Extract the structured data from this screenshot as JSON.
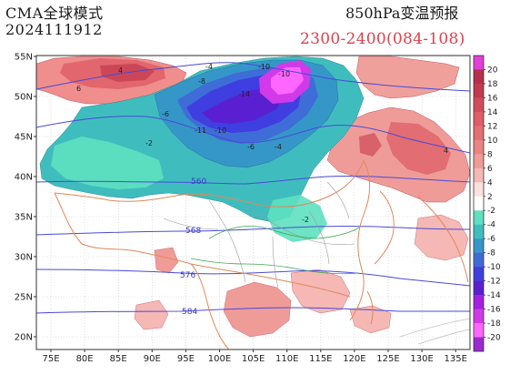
{
  "header": {
    "model": "CMA全球模式",
    "init_time": "2024111912",
    "product": "850hPa变温预报",
    "period": "2300-2400",
    "hours": "084-108",
    "open_paren": "(",
    "close_paren": ")"
  },
  "map": {
    "lat_ticks": [
      "55N",
      "50N",
      "45N",
      "40N",
      "35N",
      "30N",
      "25N",
      "20N"
    ],
    "lon_ticks": [
      "75E",
      "80E",
      "85E",
      "90E",
      "95E",
      "100E",
      "105E",
      "110E",
      "115E",
      "120E",
      "125E",
      "130E",
      "135E"
    ],
    "contour_labels": [
      "560",
      "568",
      "576",
      "584"
    ],
    "temp_labels": [
      "-10",
      "-10",
      "-14",
      "-11",
      "-10",
      "-8",
      "-6",
      "-4",
      "-6",
      "-4",
      "-2",
      "4",
      "4",
      "6",
      "-2"
    ]
  },
  "colorbar": {
    "labels": [
      "20",
      "18",
      "16",
      "14",
      "12",
      "10",
      "8",
      "6",
      "4",
      "2",
      "-2",
      "-4",
      "-6",
      "-8",
      "-10",
      "-12",
      "-14",
      "-16",
      "-18",
      "-20"
    ],
    "colors": [
      "#e23ed8",
      "#b5304a",
      "#c23a4f",
      "#d24d5c",
      "#de5d66",
      "#e46f72",
      "#ea8483",
      "#ef9c99",
      "#f5b8b5",
      "#fde1de",
      "#ffffff",
      "#5ee0c0",
      "#3fbdbe",
      "#3597c8",
      "#3f6ad8",
      "#3f3ee0",
      "#5a1fd0",
      "#a41fe0",
      "#d03ae8",
      "#ff66ff",
      "#9b29d0"
    ]
  }
}
